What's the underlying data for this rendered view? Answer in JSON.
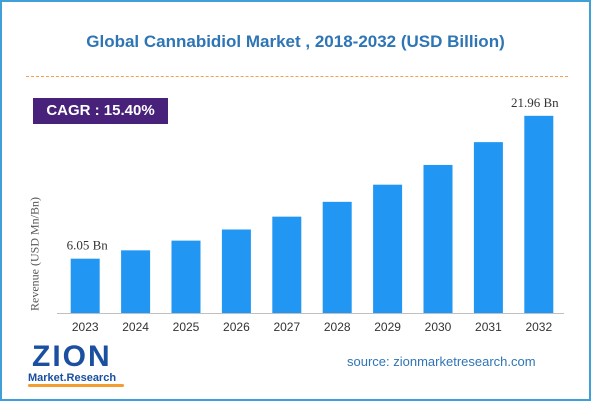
{
  "title": "Global Cannabidiol Market , 2018-2032 (USD Billion)",
  "cagr_label": "CAGR : 15.40%",
  "source": "source: zionmarketresearch.com",
  "logo": {
    "main": "ZION",
    "sub": "Market.Research"
  },
  "colors": {
    "bar": "#2196f3",
    "title": "#2e75b6",
    "cagr_bg": "#47217a",
    "border": "#3fa0d8"
  },
  "chart_data": {
    "type": "bar",
    "title": "Global Cannabidiol Market , 2018-2032 (USD Billion)",
    "ylabel": "Revenue (USD Mn/Bn)",
    "xlabel": "",
    "categories": [
      "2023",
      "2024",
      "2025",
      "2026",
      "2027",
      "2028",
      "2029",
      "2030",
      "2031",
      "2032"
    ],
    "values": [
      6.05,
      6.98,
      8.06,
      9.3,
      10.73,
      12.38,
      14.29,
      16.49,
      19.03,
      21.96
    ],
    "data_labels": {
      "first": "6.05 Bn",
      "last": "21.96 Bn"
    },
    "ylim": [
      0,
      23.5
    ],
    "grid": false,
    "legend": "none"
  }
}
